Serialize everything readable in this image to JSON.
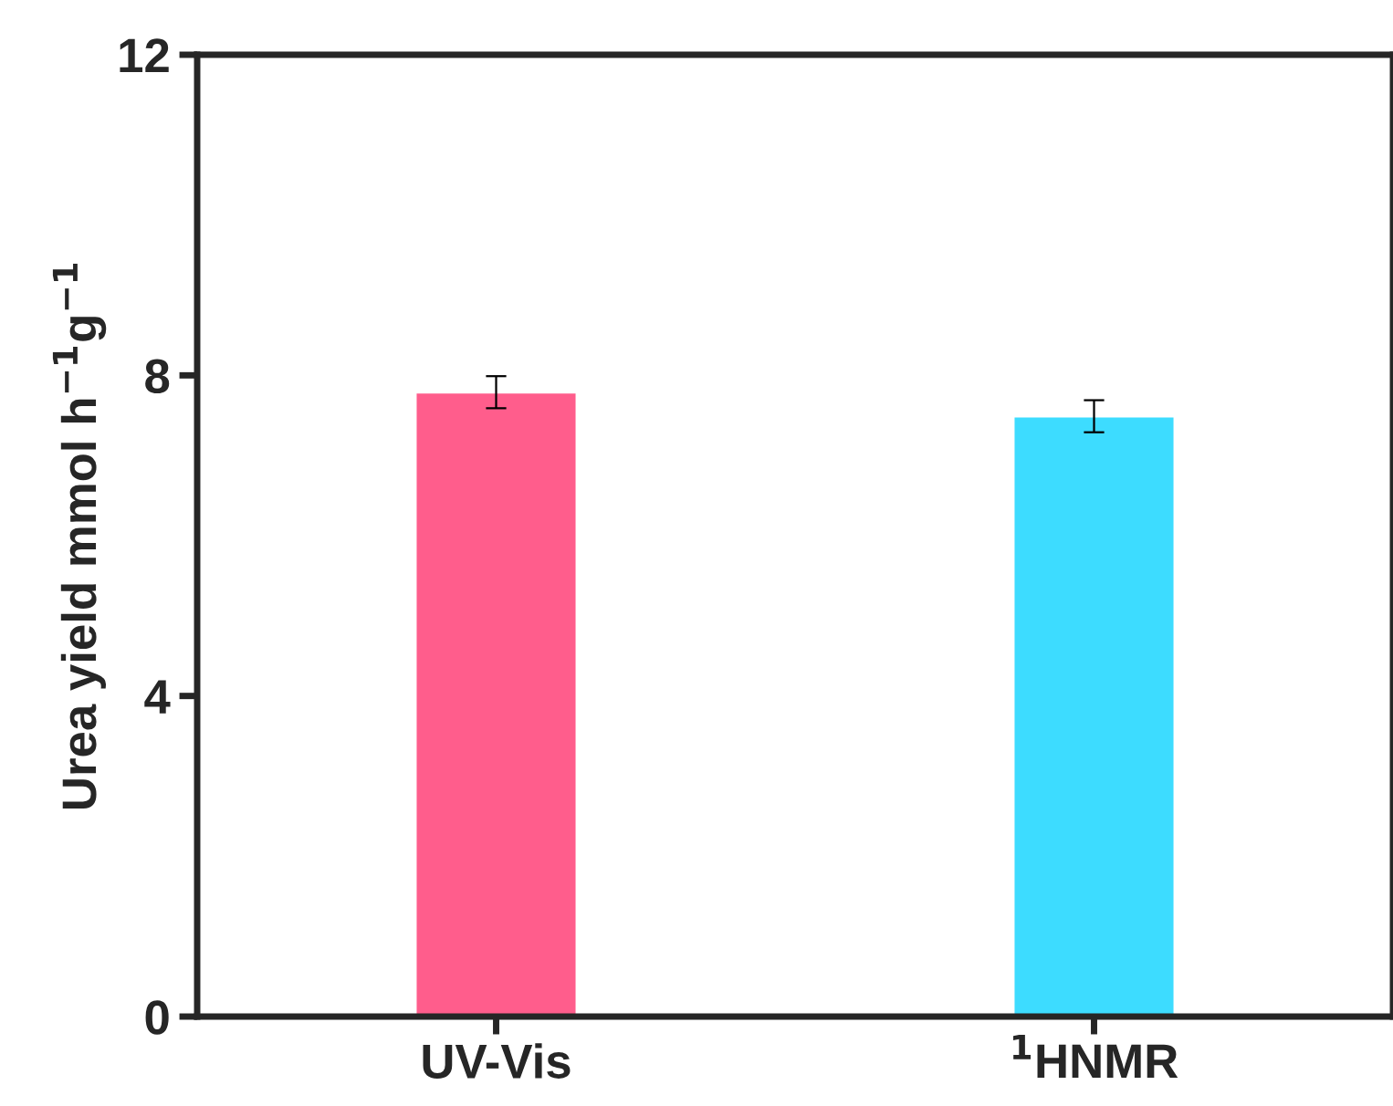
{
  "chart_data": {
    "type": "bar",
    "ylabel": "Urea yield mmol h$^{−1}$g$^{−1}$",
    "categories": [
      "UV-Vis",
      "$^{1}$HNMR"
    ],
    "values": [
      7.79,
      7.49
    ],
    "errors": [
      0.2,
      0.2
    ],
    "colors": [
      "#ff5d8c",
      "#3ddcff"
    ],
    "ylim": [
      0,
      12
    ],
    "yticks": [
      0,
      4,
      8,
      12
    ],
    "grid": false,
    "legend": false
  }
}
